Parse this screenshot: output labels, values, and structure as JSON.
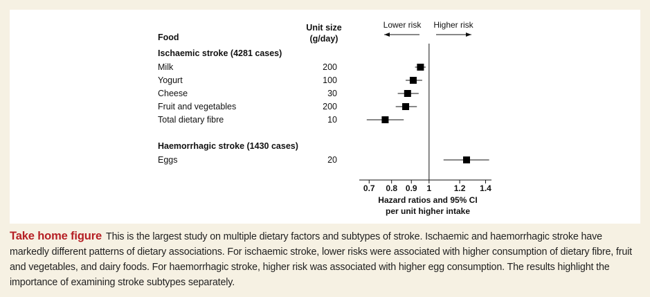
{
  "caption": {
    "title": "Take home figure",
    "text": "This is the largest study on multiple dietary factors and subtypes of stroke. Ischaemic and haemorrhagic stroke have markedly different patterns of dietary associations. For ischaemic stroke, lower risks were associated with higher consumption of dietary fibre, fruit and vegetables, and dairy foods. For haemorrhagic stroke, higher risk was associated with higher egg consumption. The results highlight the importance of examining stroke subtypes separately."
  },
  "chart_data": {
    "type": "forest",
    "food_header": "Food",
    "unit_header_line1": "Unit size",
    "unit_header_line2": "(g/day)",
    "lower_risk_label": "Lower risk",
    "higher_risk_label": "Higher risk",
    "xlabel_line1": "Hazard ratios and 95% CI",
    "xlabel_line2": "per unit higher intake",
    "x_scale": "log",
    "xlim": [
      0.66,
      1.45
    ],
    "reference_line": 1,
    "ticks": [
      {
        "value": 0.7,
        "label": "0.7"
      },
      {
        "value": 0.8,
        "label": "0.8"
      },
      {
        "value": 0.9,
        "label": "0.9"
      },
      {
        "value": 1,
        "label": "1"
      },
      {
        "value": 1.2,
        "label": "1.2"
      },
      {
        "value": 1.4,
        "label": "1.4"
      }
    ],
    "groups": [
      {
        "title": "Ischaemic stroke (4281 cases)",
        "rows": [
          {
            "food": "Milk",
            "unit": "200",
            "hr": 0.95,
            "lower": 0.92,
            "upper": 0.98
          },
          {
            "food": "Yogurt",
            "unit": "100",
            "hr": 0.91,
            "lower": 0.87,
            "upper": 0.96
          },
          {
            "food": "Cheese",
            "unit": "30",
            "hr": 0.88,
            "lower": 0.83,
            "upper": 0.94
          },
          {
            "food": "Fruit and vegetables",
            "unit": "200",
            "hr": 0.87,
            "lower": 0.82,
            "upper": 0.93
          },
          {
            "food": "Total dietary fibre",
            "unit": "10",
            "hr": 0.77,
            "lower": 0.69,
            "upper": 0.86
          }
        ]
      },
      {
        "title": "Haemorrhagic stroke (1430 cases)",
        "rows": [
          {
            "food": "Eggs",
            "unit": "20",
            "hr": 1.25,
            "lower": 1.09,
            "upper": 1.43
          }
        ]
      }
    ]
  }
}
